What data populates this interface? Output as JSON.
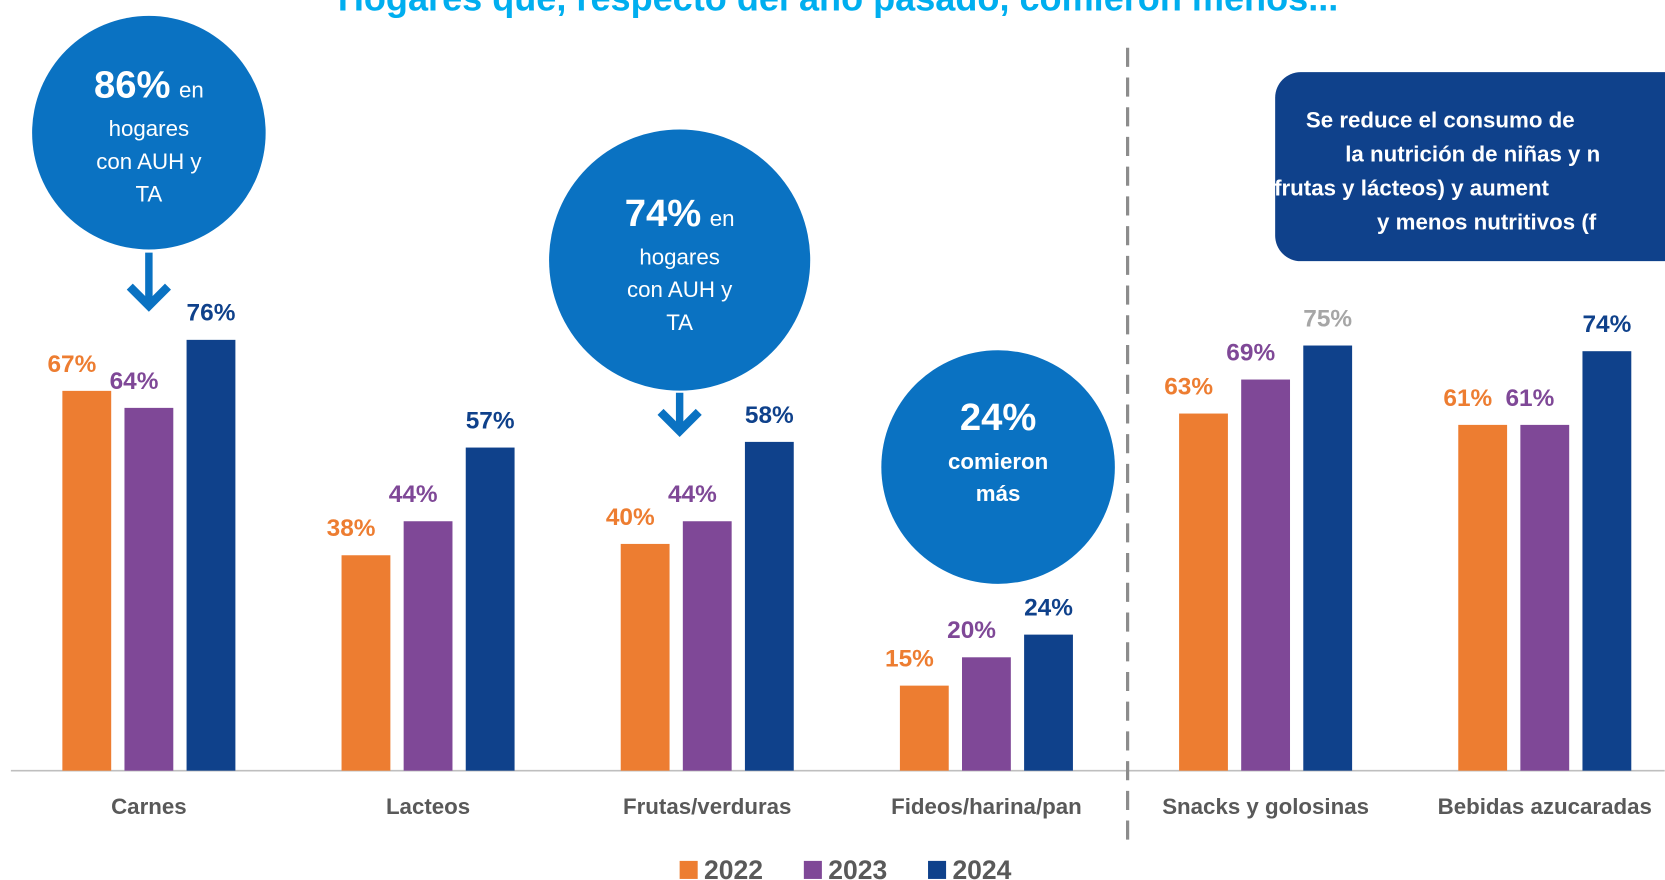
{
  "chart_data": {
    "type": "bar",
    "title": "Hogares que, respecto del año pasado, comieron menos...",
    "categories": [
      "Carnes",
      "Lacteos",
      "Frutas/verduras",
      "Fideos/harina/pan",
      "Snacks y golosinas",
      "Bebidas azucaradas"
    ],
    "series": [
      {
        "name": "2022",
        "color": "#ed7d31",
        "values": [
          67,
          38,
          40,
          15,
          63,
          61
        ],
        "value_labels": [
          "67%",
          "38%",
          "40%",
          "15%",
          "63%",
          "61%"
        ]
      },
      {
        "name": "2023",
        "color": "#7f4897",
        "values": [
          64,
          44,
          44,
          20,
          69,
          61
        ],
        "value_labels": [
          "64%",
          "44%",
          "44%",
          "20%",
          "69%",
          "61%"
        ]
      },
      {
        "name": "2024",
        "color": "#0f418b",
        "values": [
          76,
          57,
          58,
          24,
          75,
          74
        ],
        "value_labels": [
          "76%",
          "57%",
          "58%",
          "24%",
          "75%",
          "74%"
        ],
        "label_colors": [
          "#0f418b",
          "#0f418b",
          "#0f418b",
          "#0f418b",
          "#a6a6a6",
          "#0f418b"
        ]
      }
    ],
    "ylim": [
      0,
      80
    ],
    "annotations": [
      {
        "lead": "86%",
        "lead_rest": "en",
        "lines": [
          "hogares",
          "con AUH y",
          "TA"
        ]
      },
      {
        "lead": "74%",
        "lead_rest": "en",
        "lines": [
          "hogares",
          "con AUH y",
          "TA"
        ]
      },
      {
        "lead": "24%",
        "lines": [
          "comieron",
          "más"
        ]
      }
    ],
    "callout": [
      "Se reduce el consumo de",
      "la nutrición de niñas y n",
      "frutas y lácteos) y aument",
      "y menos nutritivos (f"
    ]
  }
}
